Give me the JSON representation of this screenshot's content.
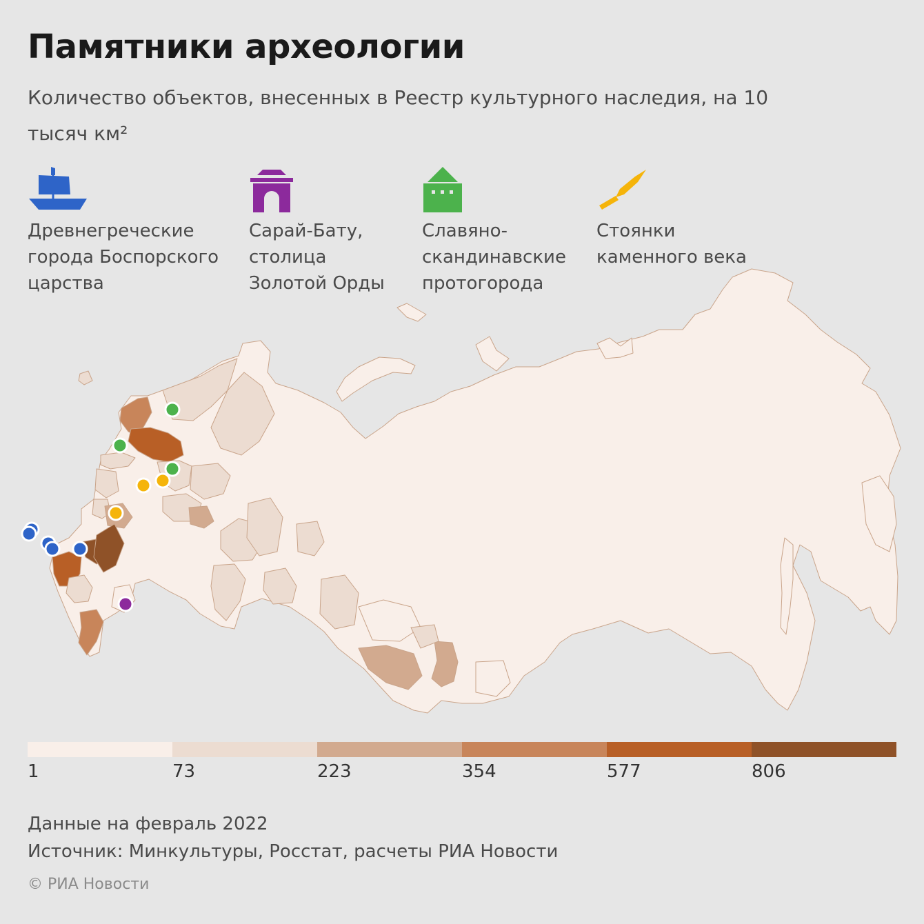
{
  "title": "Памятники археологии",
  "subtitle": "Количество объектов, внесенных в Реестр культурного наследия, на 10 тысяч км²",
  "legend": [
    {
      "icon": "ship-icon",
      "color": "#2e64c8",
      "label": "Древнегреческие\nгорода Боспорского\nцарства"
    },
    {
      "icon": "gate-icon",
      "color": "#8c2a9c",
      "label": "Сарай-Бату,\nстолица\nЗолотой Орды"
    },
    {
      "icon": "fortress-icon",
      "color": "#4cb24c",
      "label": "Славяно-\nскандинавские\nпротогорода"
    },
    {
      "icon": "stone-tool-icon",
      "color": "#f5b40a",
      "label": "Стоянки\nкаменного века"
    }
  ],
  "scale": {
    "colors": [
      "#f9efe9",
      "#ecdcd1",
      "#d2aa8f",
      "#c8855a",
      "#b85f26",
      "#8f5228"
    ],
    "labels": [
      "1",
      "73",
      "223",
      "354",
      "577",
      "806"
    ]
  },
  "footer": {
    "date": "Данные на февраль 2022",
    "source": "Источник: Минкультуры, Росстат, расчеты РИА Новости",
    "copyright": "© РИА Новости"
  }
}
